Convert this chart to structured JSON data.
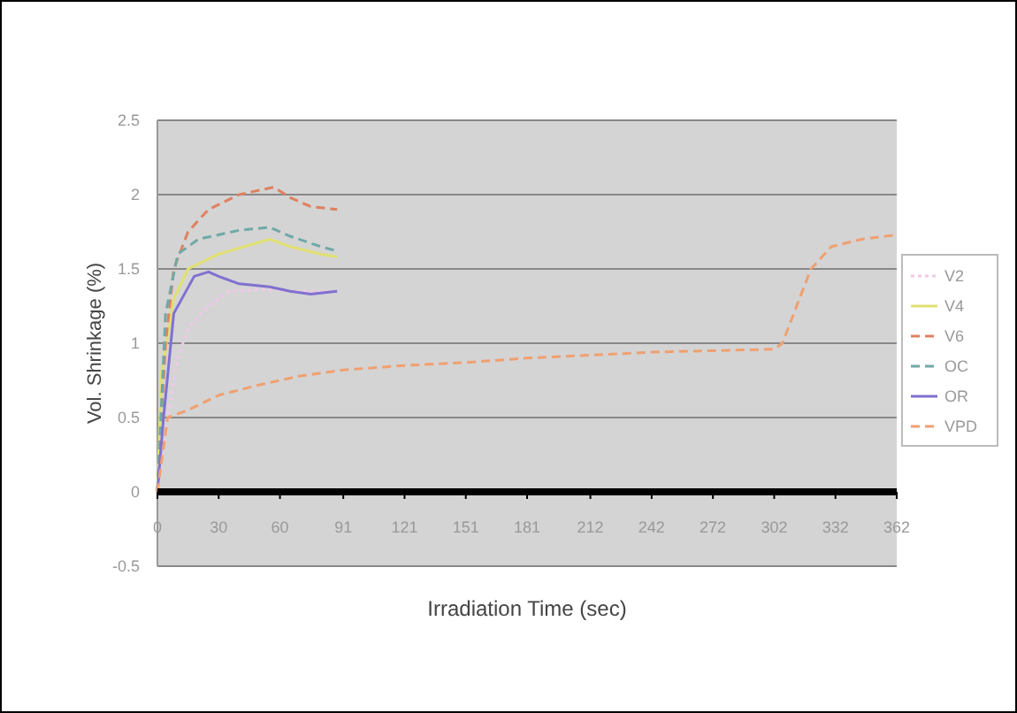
{
  "chart_data": {
    "type": "line",
    "xlabel": "Irradiation Time (sec)",
    "ylabel": "Vol. Shrinkage (%)",
    "xlim": [
      0,
      362
    ],
    "xticks": [
      0,
      30,
      60,
      91,
      121,
      151,
      181,
      212,
      242,
      272,
      302,
      332,
      362
    ],
    "ylim": [
      -0.5,
      2.5
    ],
    "yticks": [
      -0.5,
      0,
      0.5,
      1,
      1.5,
      2,
      2.5
    ],
    "grid": "y",
    "legend": "right",
    "series": [
      {
        "name": "V2",
        "color": "#f0c8e8",
        "line_style": "dotted",
        "x": [
          0,
          5,
          10,
          15,
          25,
          35,
          50,
          65,
          80,
          88
        ],
        "values": [
          0,
          0.5,
          0.9,
          1.1,
          1.25,
          1.35,
          1.36,
          1.35,
          1.35,
          1.35
        ]
      },
      {
        "name": "V4",
        "color": "#e0e070",
        "line_style": "solid",
        "x": [
          0,
          2,
          8,
          15,
          30,
          50,
          55,
          65,
          80,
          88
        ],
        "values": [
          0,
          0.8,
          1.3,
          1.5,
          1.6,
          1.68,
          1.7,
          1.65,
          1.6,
          1.58
        ]
      },
      {
        "name": "V6",
        "color": "#e08060",
        "line_style": "dashed",
        "x": [
          0,
          4,
          8,
          15,
          25,
          40,
          50,
          57,
          65,
          75,
          88
        ],
        "values": [
          0,
          1,
          1.5,
          1.75,
          1.9,
          2,
          2.03,
          2.05,
          1.98,
          1.92,
          1.9
        ]
      },
      {
        "name": "OC",
        "color": "#70a8a8",
        "line_style": "dashed",
        "x": [
          0,
          4,
          10,
          20,
          40,
          55,
          65,
          80,
          88
        ],
        "values": [
          0,
          1.2,
          1.6,
          1.7,
          1.76,
          1.78,
          1.72,
          1.65,
          1.62
        ]
      },
      {
        "name": "OR",
        "color": "#8070d0",
        "line_style": "solid",
        "x": [
          0,
          3,
          8,
          18,
          25,
          30,
          40,
          55,
          65,
          75,
          88
        ],
        "values": [
          0,
          0.5,
          1.2,
          1.45,
          1.48,
          1.45,
          1.4,
          1.38,
          1.35,
          1.33,
          1.35
        ]
      },
      {
        "name": "VPD",
        "color": "#f0a070",
        "line_style": "dashed",
        "x": [
          0,
          5,
          15,
          30,
          50,
          70,
          91,
          121,
          151,
          181,
          212,
          242,
          272,
          302,
          306,
          320,
          330,
          345,
          362
        ],
        "values": [
          0,
          0.5,
          0.55,
          0.65,
          0.72,
          0.78,
          0.82,
          0.85,
          0.87,
          0.9,
          0.92,
          0.94,
          0.95,
          0.96,
          1,
          1.5,
          1.65,
          1.7,
          1.73
        ]
      }
    ]
  }
}
